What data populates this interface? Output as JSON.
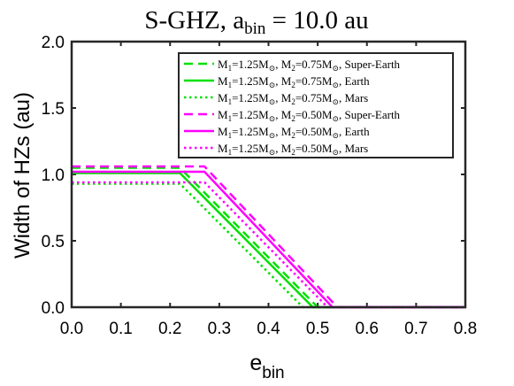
{
  "chart_data": {
    "type": "line",
    "title": "S-GHZ, a",
    "title_sub": "bin",
    "title_suffix": " = 10.0 au",
    "ylabel": "Width of HZs (au)",
    "xlabel": "e",
    "xlabel_sub": "bin",
    "xlim": [
      0.0,
      0.8
    ],
    "ylim": [
      0.0,
      2.0
    ],
    "xticks": [
      "0.0",
      "0.1",
      "0.2",
      "0.3",
      "0.4",
      "0.5",
      "0.6",
      "0.7",
      "0.8"
    ],
    "yticks": [
      "0.0",
      "0.5",
      "1.0",
      "1.5",
      "2.0"
    ],
    "grid": false,
    "legend_position": "top-right",
    "series": [
      {
        "name": "M1=1.25M⊙, M2=0.75M⊙, Super-Earth",
        "m2": "0.75",
        "planet": "Super-Earth",
        "color": "#00e000",
        "style": "dashed",
        "points": [
          [
            0.0,
            1.05
          ],
          [
            0.22,
            1.05
          ],
          [
            0.5,
            0.0
          ],
          [
            0.8,
            0.0
          ]
        ]
      },
      {
        "name": "M1=1.25M⊙, M2=0.75M⊙, Earth",
        "m2": "0.75",
        "planet": "Earth",
        "color": "#00e000",
        "style": "solid",
        "points": [
          [
            0.0,
            1.01
          ],
          [
            0.22,
            1.01
          ],
          [
            0.49,
            0.0
          ],
          [
            0.8,
            0.0
          ]
        ]
      },
      {
        "name": "M1=1.25M⊙, M2=0.75M⊙, Mars",
        "m2": "0.75",
        "planet": "Mars",
        "color": "#00e000",
        "style": "dotted",
        "points": [
          [
            0.0,
            0.93
          ],
          [
            0.22,
            0.93
          ],
          [
            0.47,
            0.0
          ],
          [
            0.8,
            0.0
          ]
        ]
      },
      {
        "name": "M1=1.25M⊙, M2=0.50M⊙, Super-Earth",
        "m2": "0.50",
        "planet": "Super-Earth",
        "color": "#ff00ff",
        "style": "dashed",
        "points": [
          [
            0.0,
            1.06
          ],
          [
            0.27,
            1.06
          ],
          [
            0.54,
            0.0
          ],
          [
            0.8,
            0.0
          ]
        ]
      },
      {
        "name": "M1=1.25M⊙, M2=0.50M⊙, Earth",
        "m2": "0.50",
        "planet": "Earth",
        "color": "#ff00ff",
        "style": "solid",
        "points": [
          [
            0.0,
            1.02
          ],
          [
            0.27,
            1.02
          ],
          [
            0.53,
            0.0
          ],
          [
            0.8,
            0.0
          ]
        ]
      },
      {
        "name": "M1=1.25M⊙, M2=0.50M⊙, Mars",
        "m2": "0.50",
        "planet": "Mars",
        "color": "#ff00ff",
        "style": "dotted",
        "points": [
          [
            0.0,
            0.94
          ],
          [
            0.27,
            0.94
          ],
          [
            0.52,
            0.0
          ],
          [
            0.8,
            0.0
          ]
        ]
      }
    ]
  }
}
